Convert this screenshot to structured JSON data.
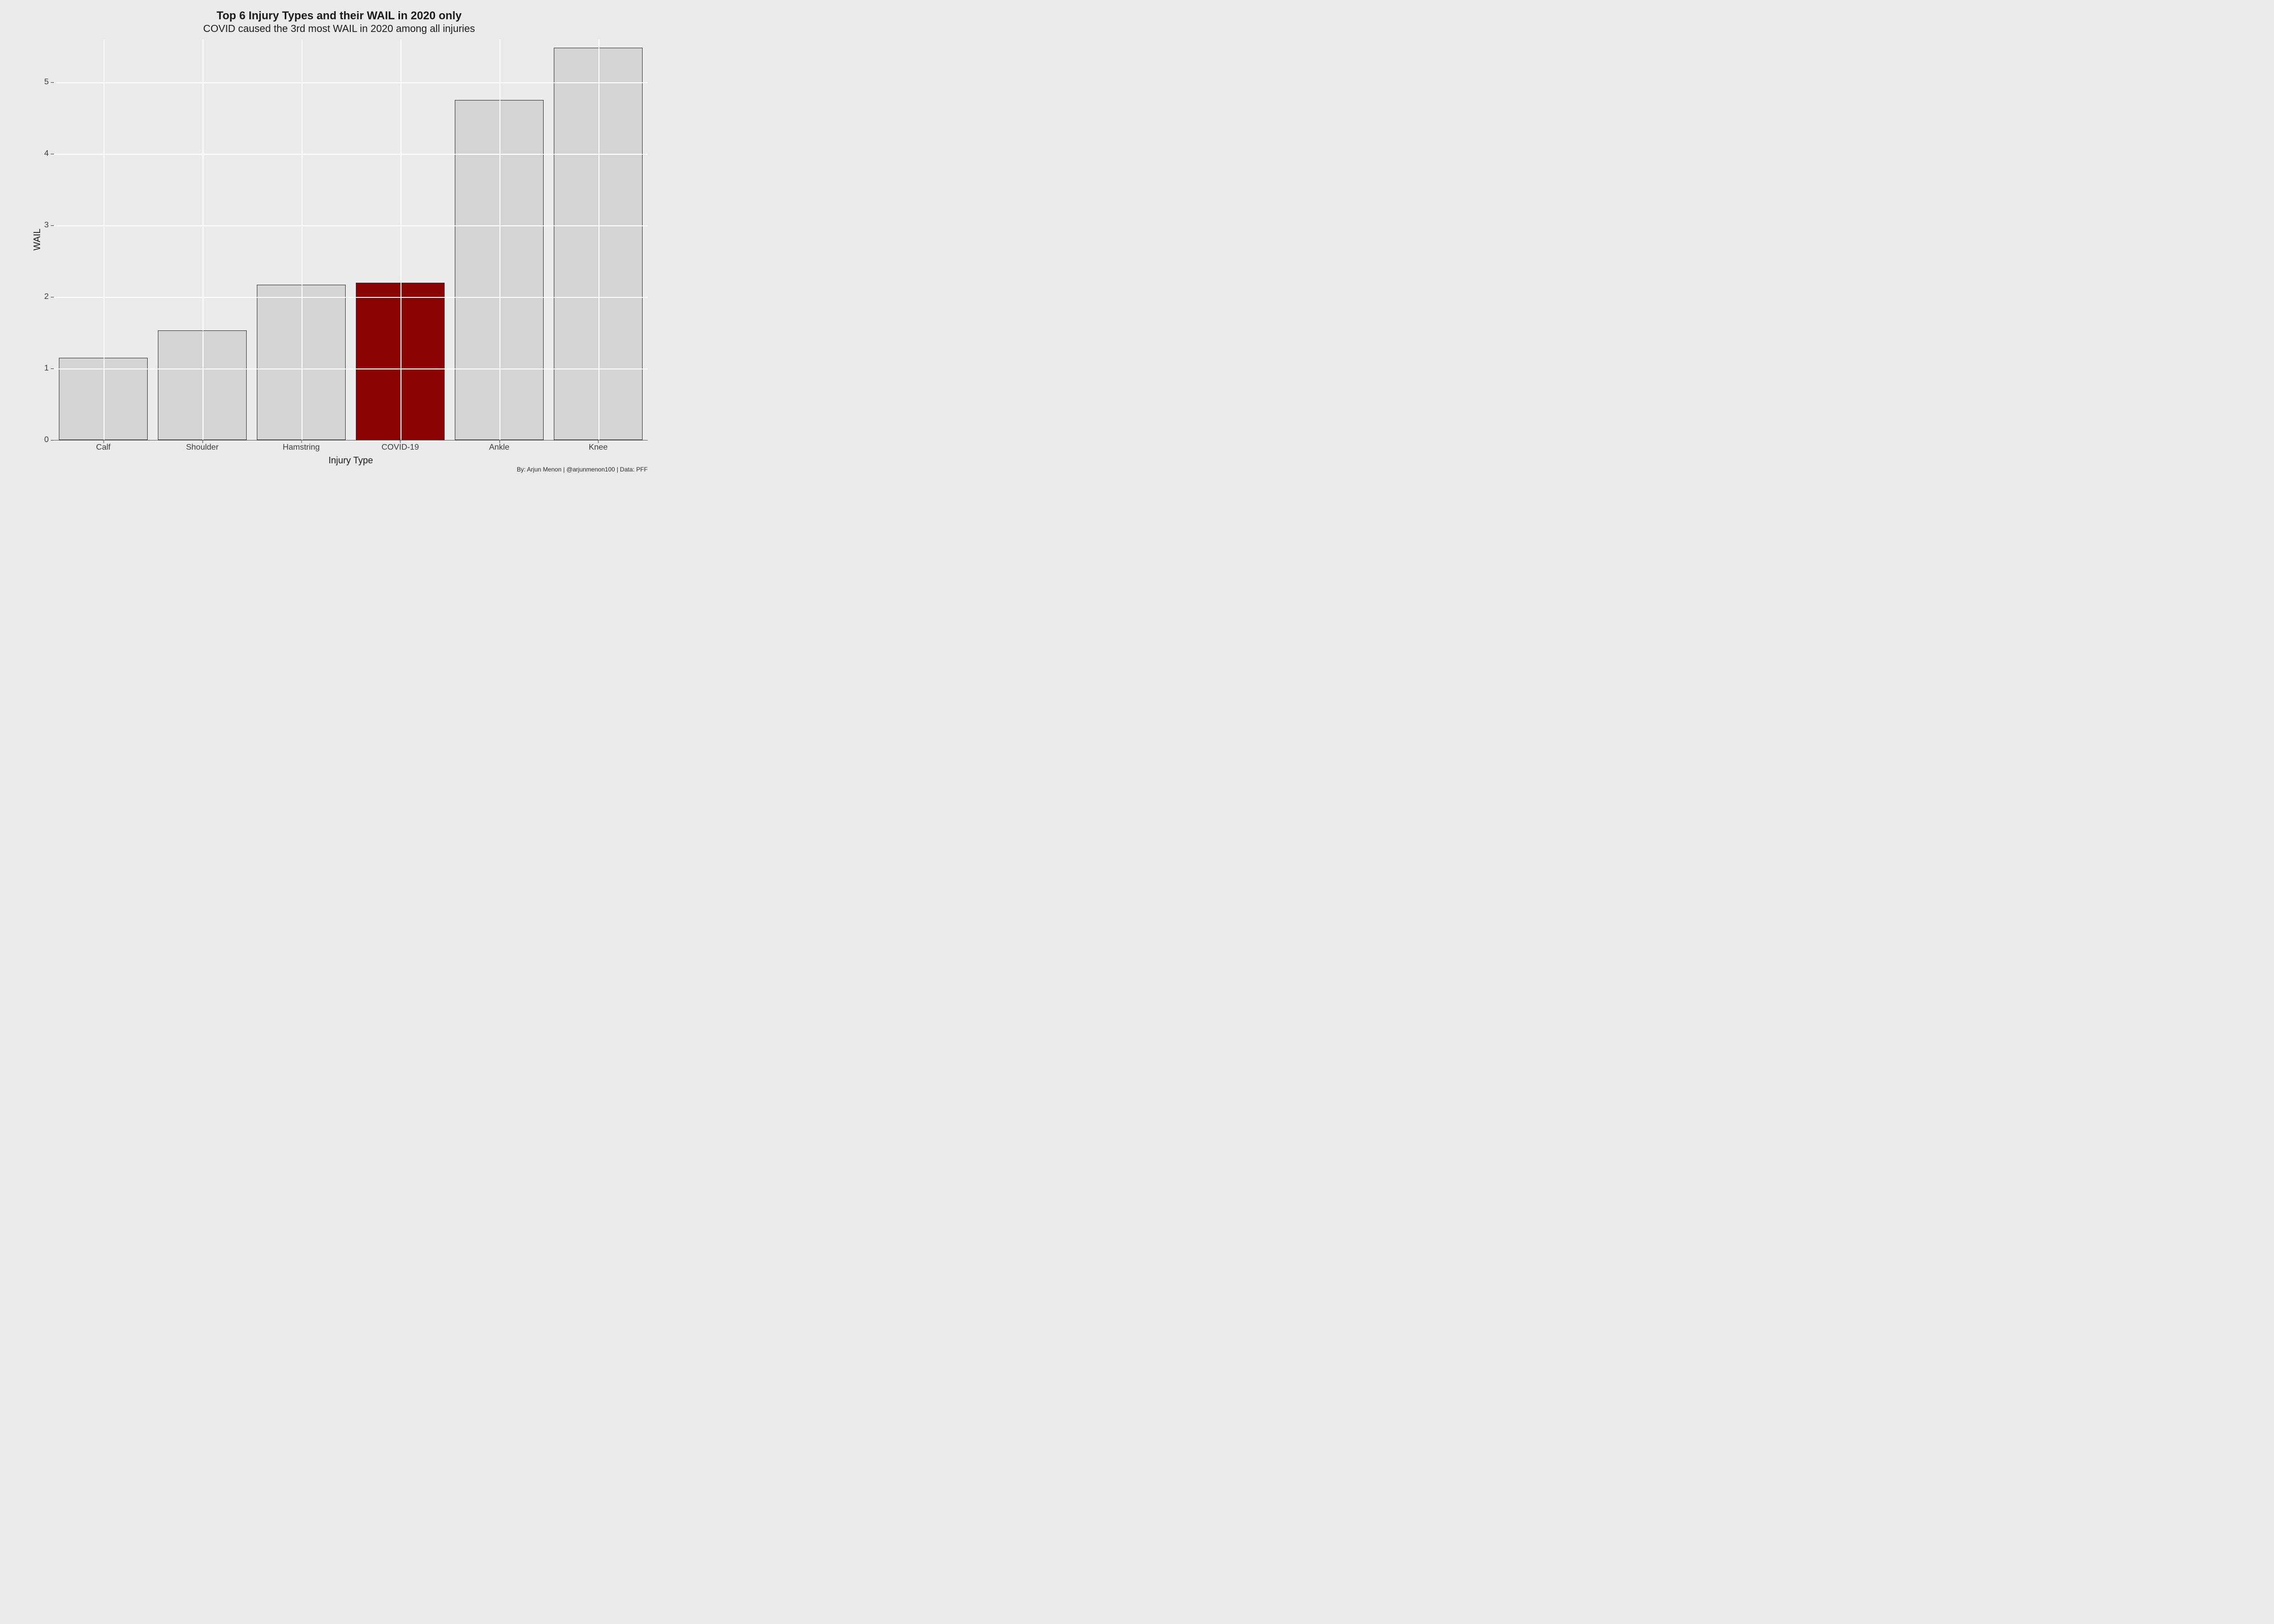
{
  "chart": {
    "type": "bar",
    "title": "Top 6 Injury Types and their WAIL in 2020 only",
    "subtitle": "COVID caused the 3rd most WAIL in 2020 among all injuries",
    "title_fontsize": 22,
    "subtitle_fontsize": 20,
    "xlabel": "Injury Type",
    "ylabel": "WAIL",
    "label_fontsize": 18,
    "tick_fontsize": 16,
    "ylim": [
      0,
      5.6
    ],
    "yticks": [
      0,
      1,
      2,
      3,
      4,
      5
    ],
    "categories": [
      "Calf",
      "Shoulder",
      "Hamstring",
      "COVID-19",
      "Ankle",
      "Knee"
    ],
    "values": [
      1.15,
      1.53,
      2.17,
      2.2,
      4.75,
      5.48
    ],
    "bar_colors": [
      "#d4d4d4",
      "#d4d4d4",
      "#d4d4d4",
      "#8b0000",
      "#d4d4d4",
      "#d4d4d4"
    ],
    "bar_border_color": "#3a3a3a",
    "bar_width": 0.9,
    "background_color": "#ebebeb",
    "grid_color": "#ffffff",
    "caption": "By: Arjun Menon | @arjunmenon100 | Data: PFF",
    "caption_fontsize": 12
  }
}
